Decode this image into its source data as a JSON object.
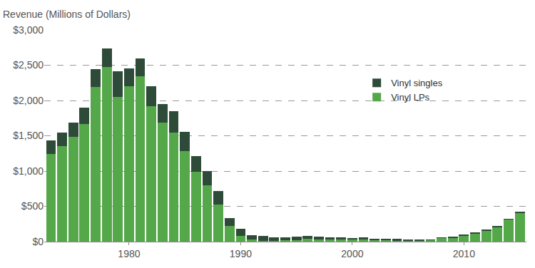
{
  "chart_data": {
    "type": "bar",
    "stacked": true,
    "y_label": "Revenue (Millions of Dollars)",
    "x": [
      1973,
      1974,
      1975,
      1976,
      1977,
      1978,
      1979,
      1980,
      1981,
      1982,
      1983,
      1984,
      1985,
      1986,
      1987,
      1988,
      1989,
      1990,
      1991,
      1992,
      1993,
      1994,
      1995,
      1996,
      1997,
      1998,
      1999,
      2000,
      2001,
      2002,
      2003,
      2004,
      2005,
      2006,
      2007,
      2008,
      2009,
      2010,
      2011,
      2012,
      2013,
      2014,
      2015
    ],
    "series": [
      {
        "name": "Vinyl LPs",
        "color": "#55a84a",
        "values": [
          1245,
          1355,
          1485,
          1665,
          2195,
          2475,
          2055,
          2200,
          2345,
          1920,
          1690,
          1545,
          1280,
          985,
          795,
          530,
          220,
          85,
          30,
          15,
          12,
          18,
          25,
          37,
          33,
          34,
          32,
          28,
          27,
          21,
          21,
          20,
          14,
          16,
          23,
          56,
          60,
          89,
          118,
          160,
          211,
          315,
          413
        ]
      },
      {
        "name": "Vinyl singles",
        "color": "#2e4a38",
        "values": [
          185,
          195,
          205,
          235,
          245,
          265,
          355,
          250,
          255,
          280,
          260,
          305,
          280,
          225,
          205,
          185,
          115,
          95,
          65,
          65,
          53,
          47,
          45,
          48,
          37,
          26,
          28,
          27,
          33,
          24,
          22,
          20,
          13,
          12,
          4,
          3,
          3,
          3,
          4,
          3,
          3,
          6,
          4
        ]
      }
    ],
    "xlim": [
      1972.4,
      2015.6
    ],
    "xticks": [
      1980,
      1990,
      2000,
      2010
    ],
    "ylim": [
      0,
      3000
    ],
    "yticks": [
      {
        "value": 0,
        "label": "$0"
      },
      {
        "value": 500,
        "label": "$500"
      },
      {
        "value": 1000,
        "label": "$1,000"
      },
      {
        "value": 1500,
        "label": "$1,500"
      },
      {
        "value": 2000,
        "label": "$2,000"
      },
      {
        "value": 2500,
        "label": "$2,500"
      },
      {
        "value": 3000,
        "label": "$3,000"
      }
    ],
    "grid": true,
    "legend": "upper right"
  }
}
